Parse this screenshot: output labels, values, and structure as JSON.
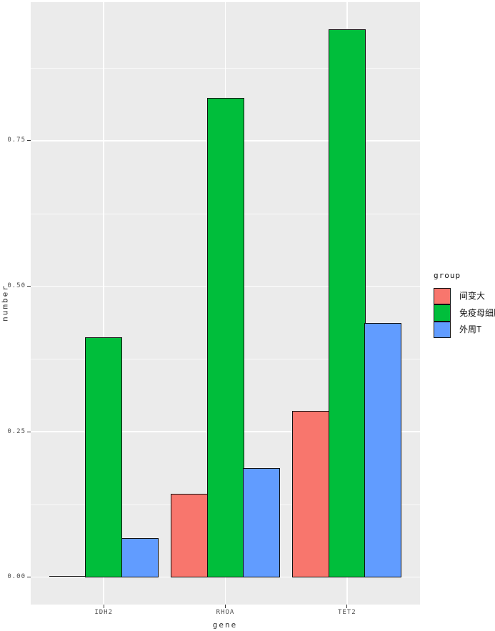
{
  "chart_data": {
    "type": "bar",
    "variant": "grouped-dodged",
    "title": "",
    "xlabel": "gene",
    "ylabel": "number",
    "categories": [
      "IDH2",
      "RHOA",
      "TET2"
    ],
    "series": [
      {
        "name": "间变大",
        "color": "#F8766D",
        "values": [
          0.001,
          0.143,
          0.286
        ]
      },
      {
        "name": "免疫母细胞",
        "color": "#00BE3B",
        "values": [
          0.412,
          0.824,
          0.941
        ]
      },
      {
        "name": "外周T",
        "color": "#619CFF",
        "values": [
          0.067,
          0.188,
          0.437
        ]
      }
    ],
    "y_ticks": [
      "0.00",
      "0.25",
      "0.50",
      "0.75"
    ],
    "ylim": [
      -0.047,
      0.988
    ],
    "grid": "white major+minor horizontal lines; white major vertical line at each category; grey panel",
    "legend": {
      "title": "group",
      "position": "right"
    },
    "style": {
      "panel_background": "#EBEBEB",
      "gridline_color": "#FFFFFF",
      "bar_border_color": "#111111",
      "tick_label_color": "#4D4D4D",
      "axis_title_color": "#333333"
    }
  }
}
